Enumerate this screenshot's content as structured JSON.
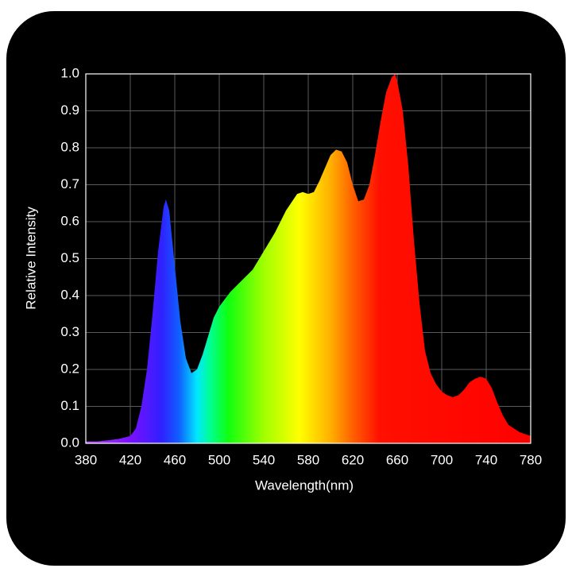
{
  "chart_data": {
    "type": "area",
    "x_label": "Wavelength(nm)",
    "y_label": "Relative Intensity",
    "x": [
      380,
      390,
      400,
      410,
      420,
      425,
      430,
      435,
      440,
      445,
      450,
      452,
      455,
      460,
      465,
      470,
      475,
      480,
      485,
      490,
      495,
      500,
      510,
      520,
      530,
      540,
      550,
      560,
      570,
      575,
      580,
      585,
      590,
      600,
      605,
      610,
      615,
      620,
      625,
      630,
      635,
      640,
      645,
      650,
      655,
      658,
      660,
      665,
      670,
      675,
      680,
      685,
      690,
      695,
      700,
      705,
      710,
      715,
      720,
      725,
      730,
      735,
      740,
      745,
      750,
      755,
      760,
      770,
      780
    ],
    "values": [
      0.005,
      0.005,
      0.008,
      0.012,
      0.02,
      0.04,
      0.1,
      0.2,
      0.35,
      0.52,
      0.64,
      0.66,
      0.63,
      0.48,
      0.33,
      0.23,
      0.19,
      0.2,
      0.24,
      0.29,
      0.34,
      0.37,
      0.41,
      0.44,
      0.47,
      0.52,
      0.57,
      0.63,
      0.675,
      0.68,
      0.675,
      0.68,
      0.71,
      0.78,
      0.795,
      0.79,
      0.76,
      0.7,
      0.655,
      0.66,
      0.7,
      0.78,
      0.87,
      0.95,
      0.99,
      1.0,
      0.98,
      0.9,
      0.75,
      0.55,
      0.38,
      0.25,
      0.19,
      0.16,
      0.14,
      0.13,
      0.125,
      0.13,
      0.145,
      0.165,
      0.175,
      0.18,
      0.175,
      0.15,
      0.11,
      0.075,
      0.05,
      0.03,
      0.02
    ],
    "xlim": [
      380,
      780
    ],
    "xticks": [
      380,
      420,
      460,
      500,
      540,
      580,
      620,
      660,
      700,
      740,
      780
    ],
    "ylim": [
      0,
      1
    ],
    "yticks": [
      {
        "value": 0,
        "label": "0.0"
      },
      0.1,
      0.2,
      0.3,
      0.4,
      0.5,
      0.6,
      0.7,
      0.8,
      0.9,
      {
        "value": 1,
        "label": "1.0"
      }
    ],
    "grid": true
  }
}
